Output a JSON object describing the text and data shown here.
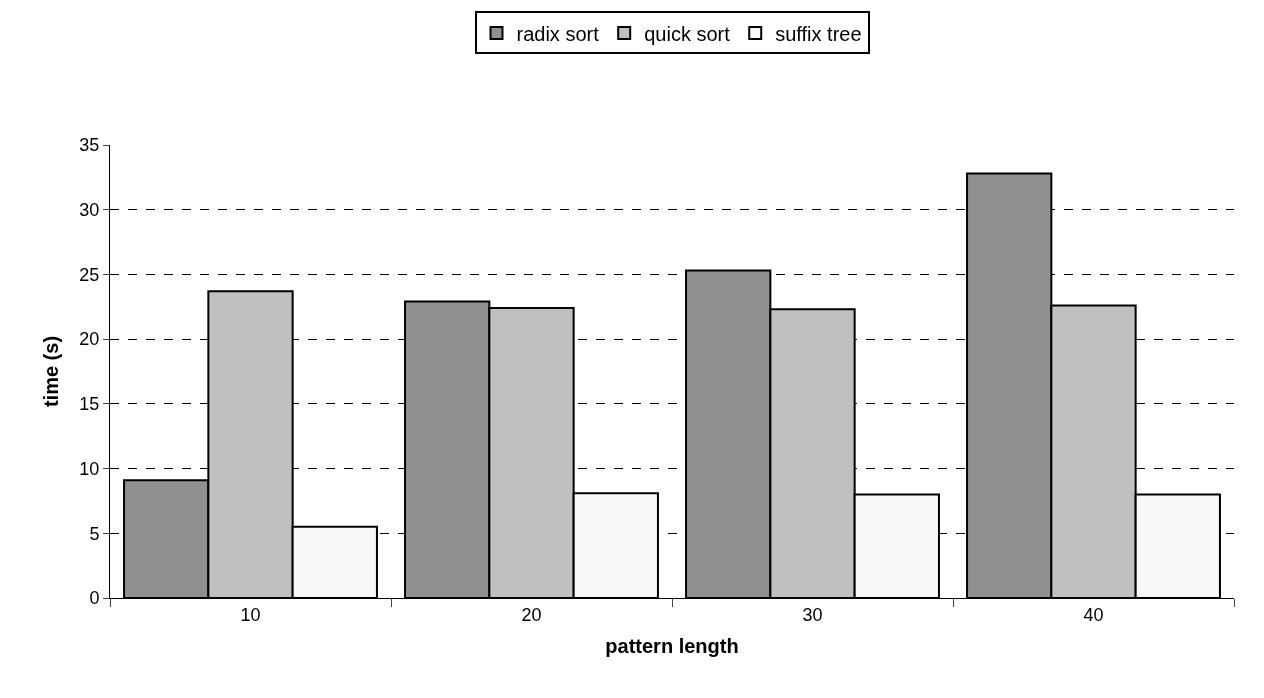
{
  "chart_data": {
    "type": "bar",
    "xlabel": "pattern length",
    "ylabel": "time (s)",
    "categories": [
      "10",
      "20",
      "30",
      "40"
    ],
    "series": [
      {
        "name": "radix sort",
        "color": "#909090",
        "values": [
          9.1,
          22.9,
          25.3,
          32.8
        ]
      },
      {
        "name": "quick sort",
        "color": "#c0c0c0",
        "values": [
          23.7,
          22.4,
          22.3,
          22.6
        ]
      },
      {
        "name": "suffix tree",
        "color": "#f8f8f8",
        "values": [
          5.5,
          8.1,
          8.0,
          8.0
        ]
      }
    ],
    "ylim": [
      0,
      35
    ],
    "yticks": [
      0,
      5,
      10,
      15,
      20,
      25,
      30,
      35
    ],
    "grid": "y",
    "legend": "top"
  }
}
